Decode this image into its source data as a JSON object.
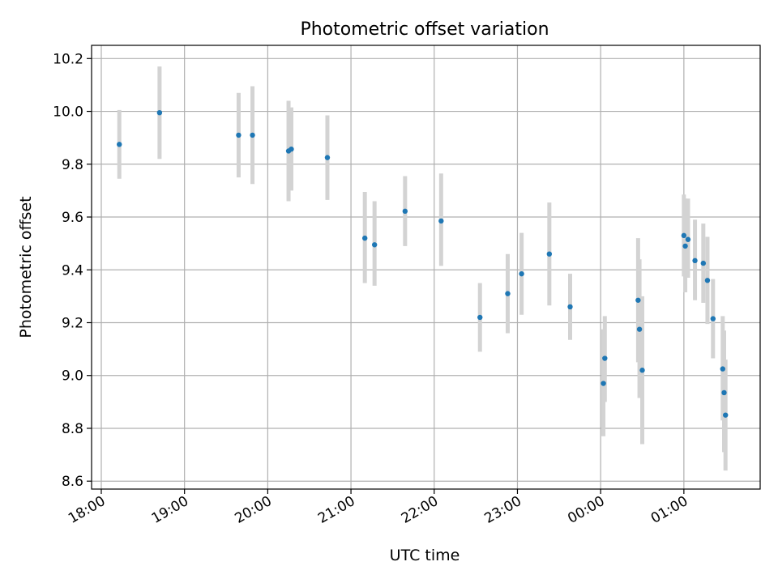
{
  "chart_data": {
    "type": "scatter",
    "title": "Photometric offset variation",
    "xlabel": "UTC time",
    "ylabel": "Photometric offset",
    "x_unit": "UTC time",
    "x_ticks": [
      "18:00",
      "19:00",
      "20:00",
      "21:00",
      "22:00",
      "23:00",
      "00:00",
      "01:00"
    ],
    "y_ticks": [
      "8.6",
      "8.8",
      "9.0",
      "9.2",
      "9.4",
      "9.6",
      "9.8",
      "10.0",
      "10.2"
    ],
    "xlim": [
      "17:53",
      "1:55"
    ],
    "ylim": [
      8.57,
      10.25
    ],
    "grid": true,
    "colors": {
      "points": "#1f77b4",
      "errorbars": "#d3d3d3",
      "grid": "#b0b0b0"
    },
    "series": [
      {
        "points": [
          {
            "time": "18:13",
            "value": 9.875,
            "low": 9.745,
            "high": 10.005
          },
          {
            "time": "18:42",
            "value": 9.995,
            "low": 9.82,
            "high": 10.17
          },
          {
            "time": "19:39",
            "value": 9.91,
            "low": 9.75,
            "high": 10.07
          },
          {
            "time": "19:49",
            "value": 9.91,
            "low": 9.725,
            "high": 10.095
          },
          {
            "time": "20:15",
            "value": 9.85,
            "low": 9.66,
            "high": 10.04
          },
          {
            "time": "20:17",
            "value": 9.857,
            "low": 9.7,
            "high": 10.015
          },
          {
            "time": "20:43",
            "value": 9.825,
            "low": 9.665,
            "high": 9.985
          },
          {
            "time": "21:10",
            "value": 9.52,
            "low": 9.35,
            "high": 9.695
          },
          {
            "time": "21:17",
            "value": 9.495,
            "low": 9.34,
            "high": 9.66
          },
          {
            "time": "21:39",
            "value": 9.622,
            "low": 9.49,
            "high": 9.755
          },
          {
            "time": "22:05",
            "value": 9.585,
            "low": 9.415,
            "high": 9.765
          },
          {
            "time": "22:33",
            "value": 9.22,
            "low": 9.09,
            "high": 9.35
          },
          {
            "time": "22:53",
            "value": 9.31,
            "low": 9.16,
            "high": 9.46
          },
          {
            "time": "23:03",
            "value": 9.385,
            "low": 9.23,
            "high": 9.54
          },
          {
            "time": "23:23",
            "value": 9.46,
            "low": 9.265,
            "high": 9.655
          },
          {
            "time": "23:38",
            "value": 9.26,
            "low": 9.135,
            "high": 9.385
          },
          {
            "time": "0:02",
            "value": 8.97,
            "low": 8.77,
            "high": 9.175
          },
          {
            "time": "0:03",
            "value": 9.065,
            "low": 8.9,
            "high": 9.225
          },
          {
            "time": "0:27",
            "value": 9.285,
            "low": 9.05,
            "high": 9.52
          },
          {
            "time": "0:28",
            "value": 9.175,
            "low": 8.915,
            "high": 9.44
          },
          {
            "time": "0:30",
            "value": 9.02,
            "low": 8.74,
            "high": 9.3
          },
          {
            "time": "1:00",
            "value": 9.53,
            "low": 9.375,
            "high": 9.685
          },
          {
            "time": "1:01",
            "value": 9.49,
            "low": 9.315,
            "high": 9.67
          },
          {
            "time": "1:03",
            "value": 9.515,
            "low": 9.37,
            "high": 9.67
          },
          {
            "time": "1:08",
            "value": 9.435,
            "low": 9.285,
            "high": 9.59
          },
          {
            "time": "1:14",
            "value": 9.425,
            "low": 9.275,
            "high": 9.575
          },
          {
            "time": "1:17",
            "value": 9.36,
            "low": 9.195,
            "high": 9.525
          },
          {
            "time": "1:21",
            "value": 9.215,
            "low": 9.065,
            "high": 9.365
          },
          {
            "time": "1:28",
            "value": 9.025,
            "low": 8.83,
            "high": 9.225
          },
          {
            "time": "1:29",
            "value": 8.935,
            "low": 8.71,
            "high": 9.17
          },
          {
            "time": "1:30",
            "value": 8.85,
            "low": 8.64,
            "high": 9.06
          }
        ]
      }
    ]
  }
}
